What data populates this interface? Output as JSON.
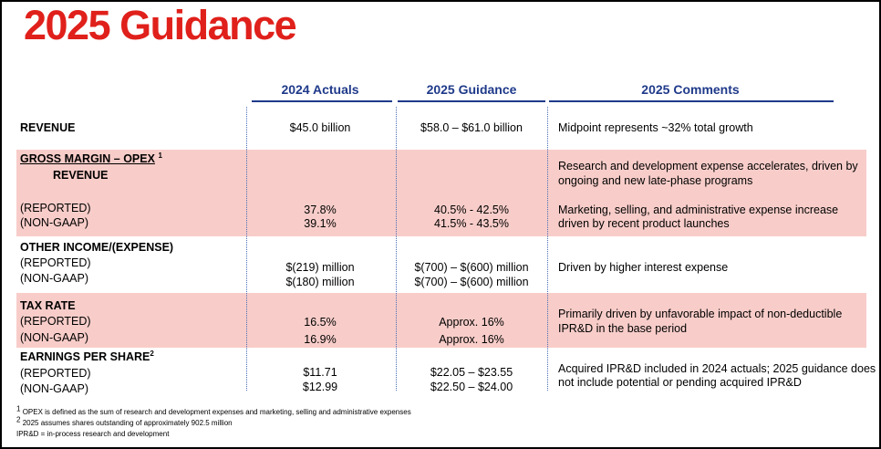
{
  "title": "2025 Guidance",
  "columns": {
    "actuals": "2024 Actuals",
    "guidance": "2025 Guidance",
    "comments": "2025 Comments"
  },
  "revenue": {
    "label": "REVENUE",
    "actuals": "$45.0 billion",
    "guidance": "$58.0 – $61.0 billion",
    "comment": "Midpoint represents ~32% total growth"
  },
  "gross_margin": {
    "label": "GROSS MARGIN – OPEX",
    "sup": "1",
    "label2": "REVENUE",
    "reported_label": "(REPORTED)",
    "nongaap_label": "(NON-GAAP)",
    "actuals_reported": "37.8%",
    "actuals_nongaap": "39.1%",
    "guidance_reported": "40.5% - 42.5%",
    "guidance_nongaap": "41.5% - 43.5%",
    "comment1_line1": "Research and development expense accelerates, driven by",
    "comment1_line2": "ongoing and new late-phase programs",
    "comment2_line1": "Marketing, selling, and administrative expense increase",
    "comment2_line2": "driven by recent product launches"
  },
  "other_income": {
    "label": "OTHER INCOME/(EXPENSE)",
    "reported_label": "(REPORTED)",
    "nongaap_label": "(NON-GAAP)",
    "actuals_reported": "$(219) million",
    "actuals_nongaap": "$(180) million",
    "guidance_reported": "$(700) – $(600) million",
    "guidance_nongaap": "$(700) – $(600) million",
    "comment": "Driven by higher interest expense"
  },
  "tax_rate": {
    "label": "TAX RATE",
    "reported_label": "(REPORTED)",
    "nongaap_label": "(NON-GAAP)",
    "actuals_reported": "16.5%",
    "actuals_nongaap": "16.9%",
    "guidance_reported": "Approx. 16%",
    "guidance_nongaap": "Approx. 16%",
    "comment_line1": "Primarily driven by unfavorable impact of non-deductible",
    "comment_line2": "IPR&D in the base period"
  },
  "eps": {
    "label": "EARNINGS PER SHARE",
    "sup": "2",
    "reported_label": "(REPORTED)",
    "nongaap_label": "(NON-GAAP)",
    "actuals_reported": "$11.71",
    "actuals_nongaap": "$12.99",
    "guidance_reported": "$22.05 – $23.55",
    "guidance_nongaap": "$22.50 – $24.00",
    "comment_line1": "Acquired IPR&D included in 2024 actuals; 2025 guidance does",
    "comment_line2": "not include potential or pending acquired IPR&D"
  },
  "footnotes": {
    "f1_sup": "1",
    "f1": "OPEX is defined as the sum of research and development expenses and marketing, selling and administrative expenses",
    "f2_sup": "2",
    "f2": "2025 assumes shares outstanding of approximately 902.5 million",
    "f3": "IPR&D = in-process research and development"
  },
  "colors": {
    "title": "#e0201b",
    "header": "#1f3a8a",
    "band": "#f8cdc9"
  }
}
